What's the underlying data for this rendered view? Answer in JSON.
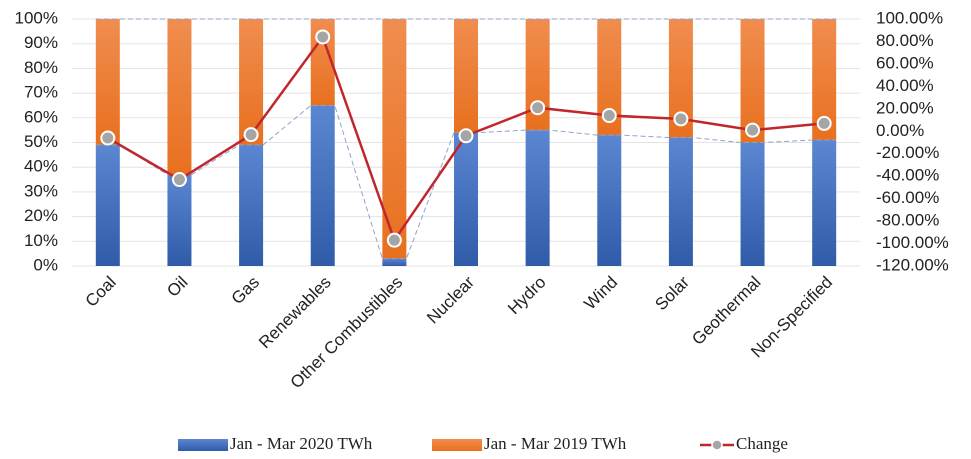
{
  "chart_data": {
    "type": "bar",
    "stacked": true,
    "categories": [
      "Coal",
      "Oil",
      "Gas",
      "Renewables",
      "Other Combustibles",
      "Nuclear",
      "Hydro",
      "Wind",
      "Solar",
      "Geothermal",
      "Non-Specified"
    ],
    "series": [
      {
        "name": "Jan - Mar 2020 TWh",
        "color": "#4472c4",
        "values": [
          49,
          37,
          49,
          65,
          3,
          54,
          55,
          53,
          52,
          50,
          51
        ]
      },
      {
        "name": "Jan - Mar 2019 TWh",
        "color": "#ed7d31",
        "values": [
          51,
          63,
          51,
          35,
          97,
          46,
          45,
          47,
          48,
          50,
          49
        ]
      },
      {
        "name": "Change",
        "type": "line",
        "axis": "y2",
        "color": "#c0272d",
        "values": [
          -6,
          -43,
          -3,
          84,
          -97,
          -4,
          21,
          14,
          11,
          1,
          7
        ]
      }
    ],
    "ylim": [
      0,
      100
    ],
    "yticks": [
      {
        "value": 0,
        "label": "0%"
      },
      {
        "value": 10,
        "label": "10%"
      },
      {
        "value": 20,
        "label": "20%"
      },
      {
        "value": 30,
        "label": "30%"
      },
      {
        "value": 40,
        "label": "40%"
      },
      {
        "value": 50,
        "label": "50%"
      },
      {
        "value": 60,
        "label": "60%"
      },
      {
        "value": 70,
        "label": "70%"
      },
      {
        "value": 80,
        "label": "80%"
      },
      {
        "value": 90,
        "label": "90%"
      },
      {
        "value": 100,
        "label": "100%"
      }
    ],
    "y2lim": [
      -120,
      100
    ],
    "y2ticks": [
      {
        "value": -120,
        "label": "-120.00%"
      },
      {
        "value": -100,
        "label": "-100.00%"
      },
      {
        "value": -80,
        "label": "-80.00%"
      },
      {
        "value": -60,
        "label": "-60.00%"
      },
      {
        "value": -40,
        "label": "-40.00%"
      },
      {
        "value": -20,
        "label": "-20.00%"
      },
      {
        "value": 0,
        "label": "0.00%"
      },
      {
        "value": 20,
        "label": "20.00%"
      },
      {
        "value": 40,
        "label": "40.00%"
      },
      {
        "value": 60,
        "label": "60.00%"
      },
      {
        "value": 80,
        "label": "80.00%"
      },
      {
        "value": 100,
        "label": "100.00%"
      }
    ],
    "grid": true,
    "legend": "bottom"
  }
}
